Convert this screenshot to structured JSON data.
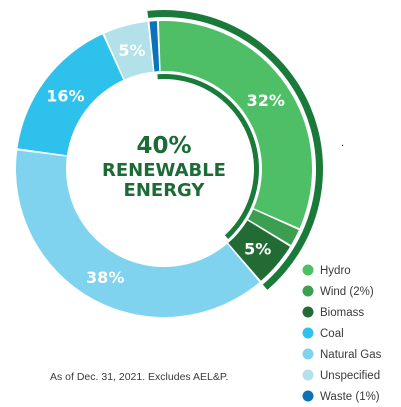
{
  "chart_data": {
    "type": "donut",
    "center_value": "40%",
    "center_line1": "RENEWABLE",
    "center_line2": "ENERGY",
    "slices": [
      {
        "name": "Hydro",
        "value": 32,
        "label": "32%",
        "color": "#4fbf67"
      },
      {
        "name": "Wind (2%)",
        "value": 2,
        "label": "",
        "color": "#3b9e50"
      },
      {
        "name": "Biomass",
        "value": 5,
        "label": "5%",
        "color": "#236b35"
      },
      {
        "name": "Coal",
        "value": 16,
        "label": "16%",
        "color": "#2ec1ec"
      },
      {
        "name": "Natural Gas",
        "value": 38,
        "label": "38%",
        "color": "#7fd3ee"
      },
      {
        "name": "Unspecified",
        "value": 5,
        "label": "5%",
        "color": "#b3e1ea"
      },
      {
        "name": "Waste (1%)",
        "value": 1,
        "label": "",
        "color": "#0b73b8"
      }
    ],
    "plot_order": [
      "Waste (1%)",
      "Hydro",
      "Wind (2%)",
      "Biomass",
      "Natural Gas",
      "Coal",
      "Unspecified"
    ],
    "renewable_highlight": [
      "Waste (1%)",
      "Hydro",
      "Wind (2%)",
      "Biomass"
    ],
    "highlight_color": "#1a7a3a",
    "legend_placement": "bottom-right",
    "footnote": "As of Dec. 31, 2021. Excludes AEL&P.",
    "stray_mark": "."
  }
}
